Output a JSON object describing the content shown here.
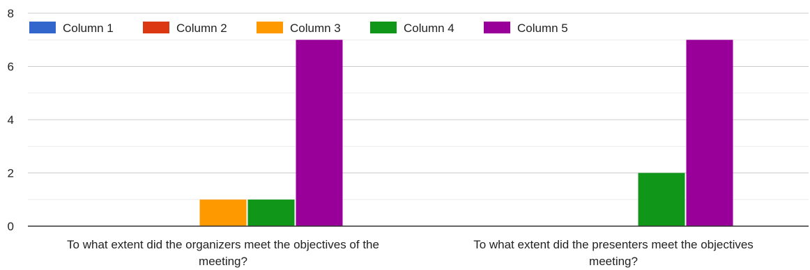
{
  "chart_data": {
    "type": "bar",
    "categories": [
      "To what extent did the organizers meet the objectives of the meeting?",
      "To what extent did the presenters meet the objectives meeting?"
    ],
    "category_lines": [
      [
        "To what extent did the organizers meet the objectives of the",
        "meeting?"
      ],
      [
        "To what extent did the presenters meet the objectives",
        "meeting?"
      ]
    ],
    "series": [
      {
        "name": "Column 1",
        "color": "#3366cc",
        "values": [
          0,
          0
        ]
      },
      {
        "name": "Column 2",
        "color": "#dc3912",
        "values": [
          0,
          0
        ]
      },
      {
        "name": "Column 3",
        "color": "#ff9900",
        "values": [
          1,
          0
        ]
      },
      {
        "name": "Column 4",
        "color": "#109618",
        "values": [
          1,
          2
        ]
      },
      {
        "name": "Column 5",
        "color": "#990099",
        "values": [
          7,
          7
        ]
      }
    ],
    "ylim": [
      0,
      8
    ],
    "yticks": [
      0,
      2,
      4,
      6,
      8
    ],
    "grid": true,
    "legend_position": "top-left",
    "title": "",
    "xlabel": "",
    "ylabel": ""
  }
}
